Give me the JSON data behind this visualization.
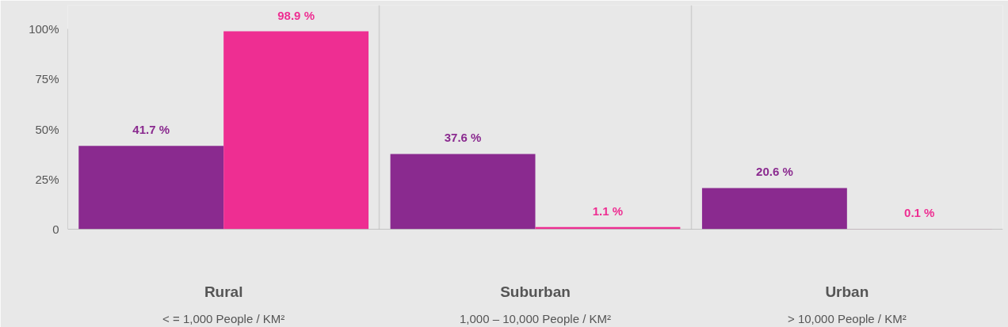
{
  "chart_data": {
    "type": "bar",
    "categories": [
      "Rural\n< = 1,000 People / KM²",
      "Suburban\n1,000 – 10,000 People / KM²",
      "Urban\n> 10,000 People / KM²"
    ],
    "series": [
      {
        "color": "#8a2a8f",
        "values": [
          41.7,
          37.6,
          20.6
        ],
        "value_labels": [
          "41.7 %",
          "37.6 %",
          "20.6 %"
        ]
      },
      {
        "color": "#ee2e92",
        "values": [
          98.9,
          1.1,
          0.1
        ],
        "value_labels": [
          "98.9 %",
          "1.1 %",
          "0.1 %"
        ]
      }
    ],
    "ylim": [
      0,
      100
    ],
    "yticks": [
      0,
      {
        "value": 25,
        "label": "25%"
      },
      {
        "value": 50,
        "label": "50%"
      },
      {
        "value": 75,
        "label": "75%"
      },
      {
        "value": 100,
        "label": "100%"
      }
    ],
    "grid": "x"
  }
}
